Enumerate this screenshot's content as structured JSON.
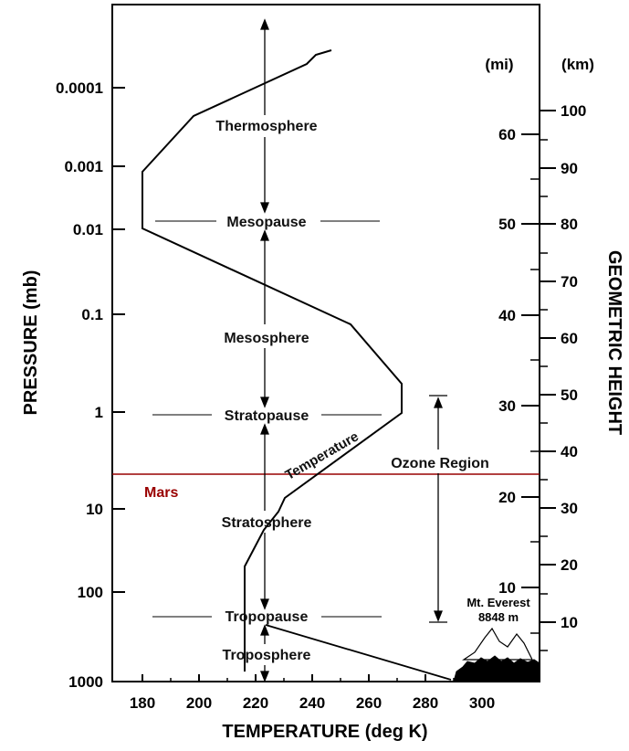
{
  "title_x": "TEMPERATURE (deg K)",
  "title_y_left": "PRESSURE (mb)",
  "title_y_right": "GEOMETRIC HEIGHT",
  "unit_mi": "(mi)",
  "unit_km": "(km)",
  "temperature_ticks": [
    "180",
    "200",
    "220",
    "240",
    "260",
    "280",
    "300"
  ],
  "pressure_ticks": [
    "0.0001",
    "0.001",
    "0.01",
    "0.1",
    "1",
    "10",
    "100",
    "1000"
  ],
  "mi_ticks": [
    "60",
    "50",
    "40",
    "30",
    "20",
    "10"
  ],
  "km_ticks": [
    "100",
    "90",
    "80",
    "70",
    "60",
    "50",
    "40",
    "30",
    "20",
    "10"
  ],
  "layers": {
    "thermosphere": "Thermosphere",
    "mesopause": "Mesopause",
    "mesosphere": "Mesosphere",
    "stratopause": "Stratopause",
    "stratosphere": "Stratosphere",
    "tropopause": "Tropopause",
    "troposphere": "Troposphere"
  },
  "curve_label": "Temperature",
  "ozone_label": "Ozone Region",
  "mars_label": "Mars",
  "everest_line1": "Mt. Everest",
  "everest_line2": "8848 m",
  "colors": {
    "mars": "#990000",
    "ink": "#000000"
  }
}
